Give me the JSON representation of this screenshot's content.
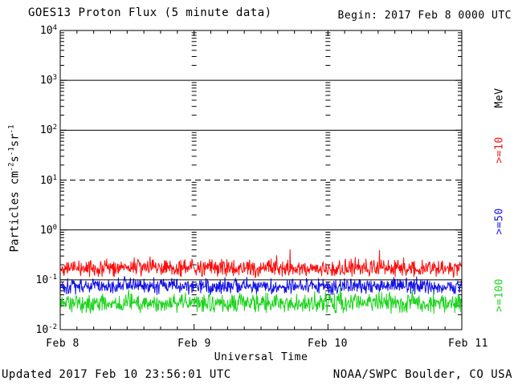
{
  "header": {
    "title": "GOES13 Proton Flux (5 minute data)",
    "begin_label": "Begin: 2017 Feb 8 0000 UTC"
  },
  "footer": {
    "updated": "Updated 2017 Feb 10 23:56:01 UTC",
    "source": "NOAA/SWPC Boulder, CO USA"
  },
  "chart_data": {
    "type": "line",
    "title": "GOES13 Proton Flux (5 minute data)",
    "subtitle": "Begin: 2017 Feb 8 0000 UTC",
    "xlabel": "Universal Time",
    "ylabel": "Particles cm-2 s-1 sr-1",
    "ylabel_parts": [
      "Particles cm",
      "-2",
      "s",
      "-1",
      "sr",
      "-1"
    ],
    "x_ticks": [
      "Feb 8",
      "Feb 9",
      "Feb 10",
      "Feb 11"
    ],
    "x_range_days": 3,
    "x_minor_tick_hours": 3,
    "ylim": [
      0.01,
      10000
    ],
    "ylim_exp": [
      -2,
      4
    ],
    "y_ticks": [
      {
        "base": "10",
        "exp": "4"
      },
      {
        "base": "10",
        "exp": "3"
      },
      {
        "base": "10",
        "exp": "2"
      },
      {
        "base": "10",
        "exp": "1"
      },
      {
        "base": "10",
        "exp": "0"
      },
      {
        "base": "10",
        "exp": "-1"
      },
      {
        "base": "10",
        "exp": "-2"
      }
    ],
    "gridlines": {
      "solid_exp": [
        3,
        2,
        0,
        -1
      ],
      "dashed_exp": [
        1
      ]
    },
    "legend": {
      "position": "right-outside",
      "unit_label": "MeV",
      "entries": [
        {
          "label": ">=10",
          "color": "#fb0e0c"
        },
        {
          "label": ">=50",
          "color": "#1412e6"
        },
        {
          "label": ">=100",
          "color": "#1dd41d"
        }
      ]
    },
    "axis_color": "#000000",
    "series": [
      {
        "name": ">=10 MeV",
        "color": "#fb0e0c",
        "typical_flux": 0.17,
        "observed_min": 0.09,
        "observed_max": 0.45,
        "base_log10": -0.77,
        "noise_decades": 0.2,
        "spike_prob": 0.05,
        "spike_decades": 0.25,
        "log_clamp": [
          -1.05,
          -0.35
        ],
        "points_per_day": 288,
        "seed": 42
      },
      {
        "name": ">=50 MeV",
        "color": "#1412e6",
        "typical_flux": 0.075,
        "observed_min": 0.035,
        "observed_max": 0.15,
        "base_log10": -1.125,
        "noise_decades": 0.19,
        "spike_prob": 0.03,
        "spike_decades": 0.2,
        "log_clamp": [
          -1.45,
          -0.85
        ],
        "points_per_day": 288,
        "seed": 1337
      },
      {
        "name": ">=100 MeV",
        "color": "#1dd41d",
        "typical_flux": 0.033,
        "observed_min": 0.015,
        "observed_max": 0.11,
        "base_log10": -1.47,
        "noise_decades": 0.23,
        "spike_prob": 0.04,
        "spike_decades": 0.3,
        "log_clamp": [
          -1.83,
          -0.98
        ],
        "points_per_day": 288,
        "seed": 2017
      }
    ]
  }
}
